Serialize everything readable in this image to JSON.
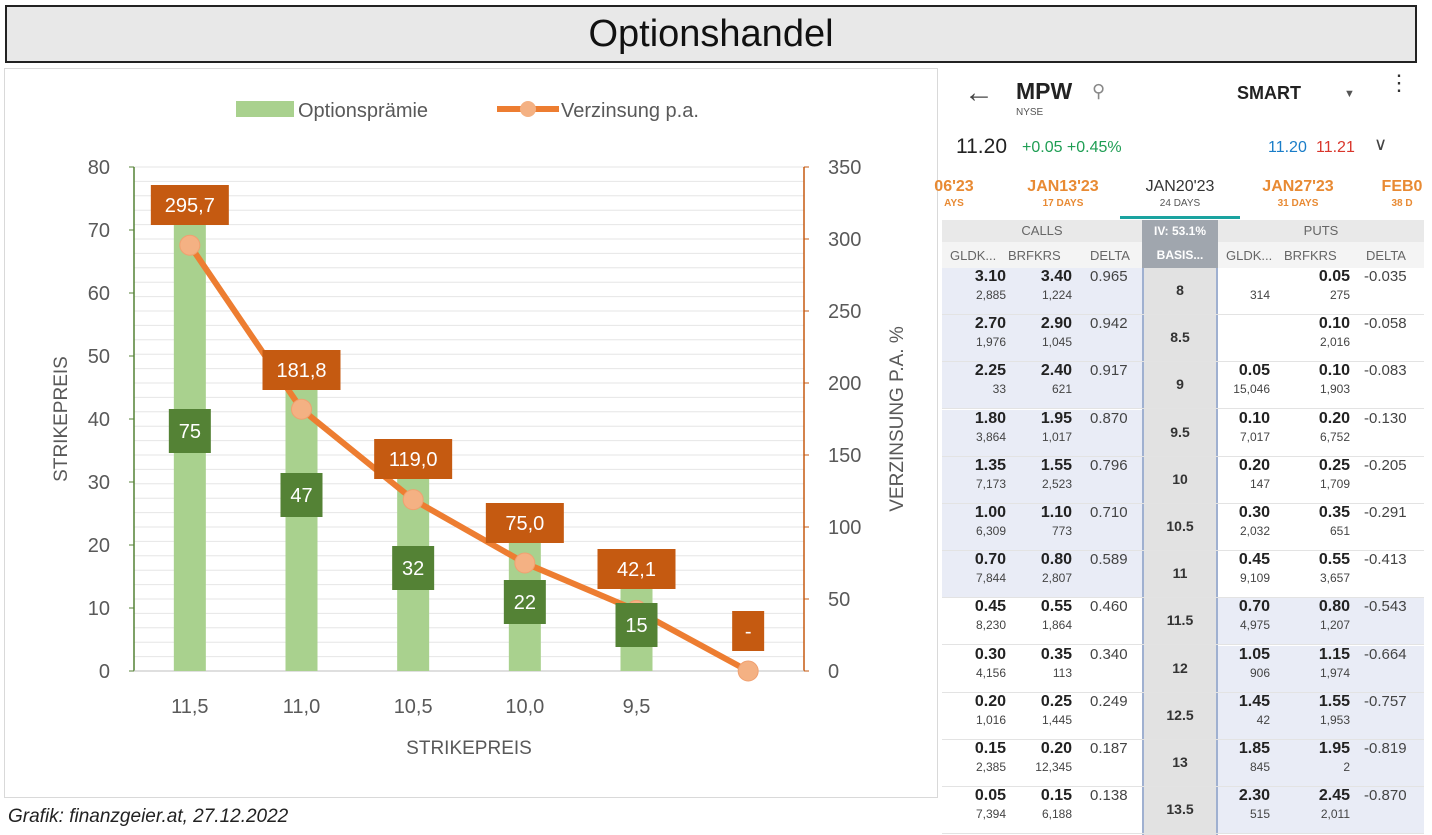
{
  "title": "Optionshandel",
  "caption": "Grafik: finanzgeier.at, 27.12.2022",
  "chart_data": {
    "type": "bar",
    "categories": [
      "11,5",
      "11,0",
      "10,5",
      "10,0",
      "9,5",
      ""
    ],
    "series": [
      {
        "name": "Optionsprämie",
        "type": "bar",
        "axis": "left",
        "color": "#a9d18e",
        "values": [
          75,
          47,
          32,
          22,
          15,
          null
        ],
        "labels": [
          "75",
          "47",
          "32",
          "22",
          "15",
          ""
        ],
        "label_color": "#548235"
      },
      {
        "name": "Verzinsung p.a.",
        "type": "line",
        "axis": "right",
        "color": "#ed7d31",
        "marker_color": "#f4b183",
        "values": [
          295.7,
          181.8,
          119.0,
          75.0,
          42.1,
          0
        ],
        "labels": [
          "295,7",
          "181,8",
          "119,0",
          "75,0",
          "42,1",
          "-"
        ],
        "label_color": "#c55a11"
      }
    ],
    "xlabel": "STRIKEPREIS",
    "ylabel": "STRIKEPREIS",
    "y2label": "VERZINSUNG P.A. %",
    "ylim": [
      0,
      80
    ],
    "y2lim": [
      0,
      350
    ],
    "yticks": [
      0,
      10,
      20,
      30,
      40,
      50,
      60,
      70,
      80
    ],
    "y2ticks": [
      0,
      50,
      100,
      150,
      200,
      250,
      300,
      350
    ],
    "legend": "top",
    "grid": true
  },
  "phone": {
    "symbol": "MPW",
    "exchange": "NYSE",
    "route": "SMART",
    "last": "11.20",
    "change": "+0.05 +0.45%",
    "bid": "11.20",
    "ask": "11.21",
    "tabs": [
      {
        "date": "06'23",
        "days": "AYS",
        "selected": false
      },
      {
        "date": "JAN13'23",
        "days": "17 DAYS",
        "selected": false
      },
      {
        "date": "JAN20'23",
        "days": "24 DAYS",
        "selected": true
      },
      {
        "date": "JAN27'23",
        "days": "31 DAYS",
        "selected": false
      },
      {
        "date": "FEB0",
        "days": "38 D",
        "selected": false
      }
    ],
    "calls_label": "CALLS",
    "puts_label": "PUTS",
    "iv": "IV: 53.1%",
    "columns": {
      "bid": "GLDK...",
      "ask": "BRFKRS",
      "delta": "DELTA",
      "basis": "BASIS..."
    },
    "rows": [
      {
        "strike": "8",
        "cb": "3.10",
        "cbs": "2,885",
        "ca": "3.40",
        "cas": "1,224",
        "cd": "0.965",
        "pb": "",
        "pbs": "314",
        "pa": "0.05",
        "pas": "275",
        "pd": "-0.035",
        "itm": "call"
      },
      {
        "strike": "8.5",
        "cb": "2.70",
        "cbs": "1,976",
        "ca": "2.90",
        "cas": "1,045",
        "cd": "0.942",
        "pb": "",
        "pbs": "",
        "pa": "0.10",
        "pas": "2,016",
        "pd": "-0.058",
        "itm": "call"
      },
      {
        "strike": "9",
        "cb": "2.25",
        "cbs": "33",
        "ca": "2.40",
        "cas": "621",
        "cd": "0.917",
        "pb": "0.05",
        "pbs": "15,046",
        "pa": "0.10",
        "pas": "1,903",
        "pd": "-0.083",
        "itm": "call"
      },
      {
        "strike": "9.5",
        "cb": "1.80",
        "cbs": "3,864",
        "ca": "1.95",
        "cas": "1,017",
        "cd": "0.870",
        "pb": "0.10",
        "pbs": "7,017",
        "pa": "0.20",
        "pas": "6,752",
        "pd": "-0.130",
        "itm": "call"
      },
      {
        "strike": "10",
        "cb": "1.35",
        "cbs": "7,173",
        "ca": "1.55",
        "cas": "2,523",
        "cd": "0.796",
        "pb": "0.20",
        "pbs": "147",
        "pa": "0.25",
        "pas": "1,709",
        "pd": "-0.205",
        "itm": "call"
      },
      {
        "strike": "10.5",
        "cb": "1.00",
        "cbs": "6,309",
        "ca": "1.10",
        "cas": "773",
        "cd": "0.710",
        "pb": "0.30",
        "pbs": "2,032",
        "pa": "0.35",
        "pas": "651",
        "pd": "-0.291",
        "itm": "call"
      },
      {
        "strike": "11",
        "cb": "0.70",
        "cbs": "7,844",
        "ca": "0.80",
        "cas": "2,807",
        "cd": "0.589",
        "pb": "0.45",
        "pbs": "9,109",
        "pa": "0.55",
        "pas": "3,657",
        "pd": "-0.413",
        "itm": "call"
      },
      {
        "strike": "11.5",
        "cb": "0.45",
        "cbs": "8,230",
        "ca": "0.55",
        "cas": "1,864",
        "cd": "0.460",
        "pb": "0.70",
        "pbs": "4,975",
        "pa": "0.80",
        "pas": "1,207",
        "pd": "-0.543",
        "itm": "put"
      },
      {
        "strike": "12",
        "cb": "0.30",
        "cbs": "4,156",
        "ca": "0.35",
        "cas": "113",
        "cd": "0.340",
        "pb": "1.05",
        "pbs": "906",
        "pa": "1.15",
        "pas": "1,974",
        "pd": "-0.664",
        "itm": "put"
      },
      {
        "strike": "12.5",
        "cb": "0.20",
        "cbs": "1,016",
        "ca": "0.25",
        "cas": "1,445",
        "cd": "0.249",
        "pb": "1.45",
        "pbs": "42",
        "pa": "1.55",
        "pas": "1,953",
        "pd": "-0.757",
        "itm": "put"
      },
      {
        "strike": "13",
        "cb": "0.15",
        "cbs": "2,385",
        "ca": "0.20",
        "cas": "12,345",
        "cd": "0.187",
        "pb": "1.85",
        "pbs": "845",
        "pa": "1.95",
        "pas": "2",
        "pd": "-0.819",
        "itm": "put"
      },
      {
        "strike": "13.5",
        "cb": "0.05",
        "cbs": "7,394",
        "ca": "0.15",
        "cas": "6,188",
        "cd": "0.138",
        "pb": "2.30",
        "pbs": "515",
        "pa": "2.45",
        "pas": "2,011",
        "pd": "-0.870",
        "itm": "put"
      }
    ]
  }
}
